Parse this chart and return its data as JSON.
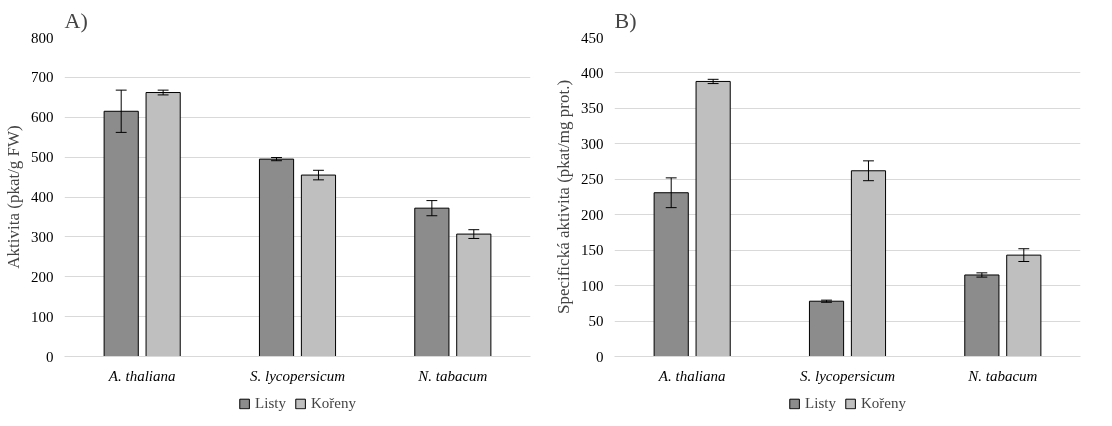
{
  "chart_data": [
    {
      "type": "bar",
      "title": "A)",
      "ylabel": "Aktivita (pkat/g FW)",
      "categories": [
        "A. thaliana",
        "S. lycopersicum",
        "N. tabacum"
      ],
      "series": [
        {
          "name": "Listy",
          "color": "#8c8c8c",
          "values": [
            615,
            495,
            372
          ],
          "errors": [
            53,
            4,
            19
          ]
        },
        {
          "name": "Kořeny",
          "color": "#bfbfbf",
          "values": [
            662,
            455,
            307
          ],
          "errors": [
            6,
            12,
            11
          ]
        }
      ],
      "ylim": [
        0,
        800
      ],
      "yticks": [
        0,
        100,
        200,
        300,
        400,
        500,
        600,
        700,
        800
      ],
      "grid": "y",
      "legend": "bottom"
    },
    {
      "type": "bar",
      "title": "B)",
      "ylabel": "Specifická aktivita (pkat/mg prot.)",
      "categories": [
        "A. thaliana",
        "S. lycopersicum",
        "N. tabacum"
      ],
      "series": [
        {
          "name": "Listy",
          "color": "#8c8c8c",
          "values": [
            231,
            78,
            115
          ],
          "errors": [
            21,
            1.5,
            3
          ]
        },
        {
          "name": "Kořeny",
          "color": "#bfbfbf",
          "values": [
            388,
            262,
            143
          ],
          "errors": [
            3,
            14,
            9
          ]
        }
      ],
      "ylim": [
        0,
        450
      ],
      "yticks": [
        0,
        50,
        100,
        150,
        200,
        250,
        300,
        350,
        400,
        450
      ],
      "grid": "y",
      "legend": "bottom"
    }
  ]
}
